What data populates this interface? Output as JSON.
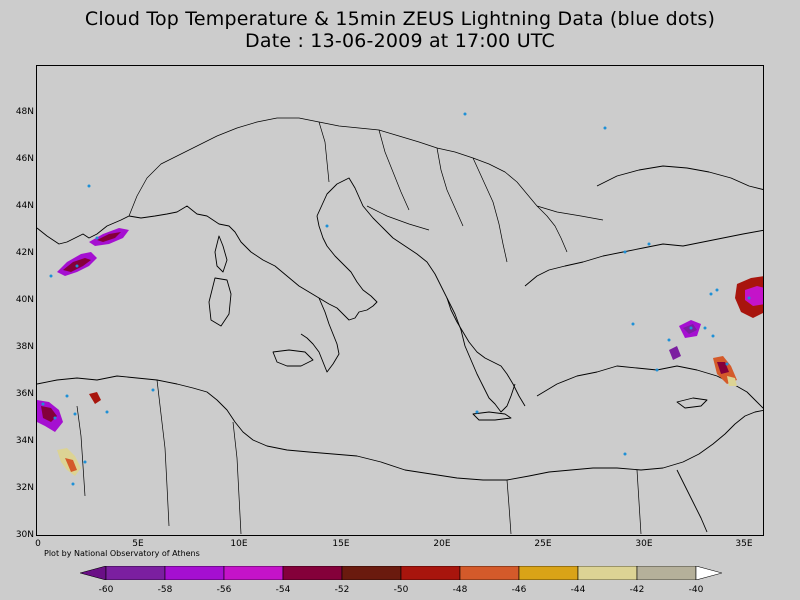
{
  "title": {
    "line1": "Cloud Top Temperature & 15min ZEUS Lightning Data (blue dots)",
    "line2": "Date : 13-06-2009 at 17:00 UTC"
  },
  "map": {
    "lat_labels": [
      "48N",
      "46N",
      "44N",
      "42N",
      "40N",
      "38N",
      "36N",
      "34N",
      "32N",
      "30N"
    ],
    "lon_labels": [
      "0",
      "5E",
      "10E",
      "15E",
      "20E",
      "25E",
      "30E",
      "35E"
    ],
    "credit": "Plot by National Observatory of Athens",
    "extent": {
      "lon_min": 0,
      "lon_max": 36,
      "lat_min": 30,
      "lat_max": 49.5
    }
  },
  "colorbar": {
    "labels": [
      "-60",
      "-58",
      "-56",
      "-54",
      "-52",
      "-50",
      "-48",
      "-46",
      "-44",
      "-42",
      "-40"
    ],
    "colors": [
      "#7b1fa0",
      "#a50fd1",
      "#c413c9",
      "#84003a",
      "#6a1a0e",
      "#a8150d",
      "#d45a2a",
      "#d9a317",
      "#dcd394",
      "#b5b09a"
    ],
    "under_color": "#6a0f86",
    "over_color": "#ffffff"
  },
  "legend_colors": {
    "lightning": "#1e90d6",
    "coast": "#000000"
  }
}
